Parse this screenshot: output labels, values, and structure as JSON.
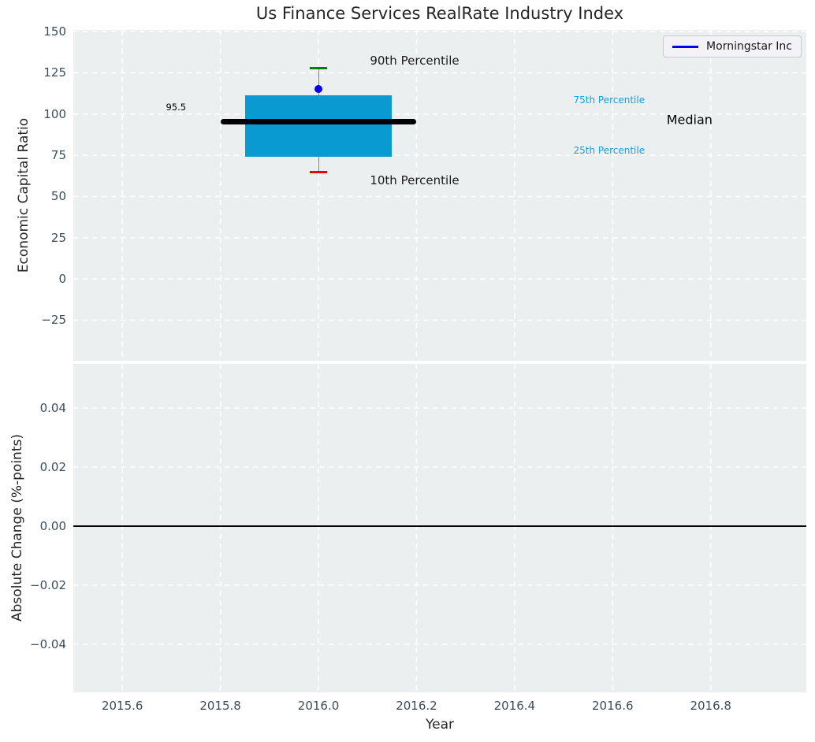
{
  "style": {
    "axes_background": "#ebeff0",
    "grid_color": "#ffffff",
    "tick_label_color": "#3d4c5a",
    "text_color": "#262626"
  },
  "chart_data": [
    {
      "type": "boxplot",
      "title": "Us Finance Services RealRate Industry Index",
      "ylabel": "Economic Capital Ratio",
      "xlim": [
        2015.5,
        2016.995
      ],
      "ylim": [
        -49.6,
        151
      ],
      "yticks": [
        150,
        125,
        100,
        75,
        50,
        25,
        0,
        -25
      ],
      "yticklabels": [
        "150",
        "125",
        "100",
        "75",
        "50",
        "25",
        "0",
        "−25"
      ],
      "xticks": [
        2015.6,
        2015.8,
        2016.0,
        2016.2,
        2016.4,
        2016.6,
        2016.8
      ],
      "grid": "white-dashed",
      "legend": {
        "position": "upper right",
        "entries": [
          {
            "label": "Morningstar Inc",
            "color": "#0000ee"
          }
        ]
      },
      "box": {
        "x_center": 2016.0,
        "box_x": [
          2015.85,
          2016.15
        ],
        "median_x": [
          2015.8,
          2016.2
        ],
        "cap_x": [
          2015.983,
          2016.017
        ],
        "p10": 65,
        "p25": 74,
        "median": 95.5,
        "p75": 111.5,
        "p90": 128,
        "box_color": "#0a9ad2",
        "median_color": "#000000",
        "cap_top_color": "#008000",
        "cap_bottom_color": "#ee0000",
        "whisker_color": "#808080"
      },
      "company_point": {
        "label": "Morningstar Inc",
        "x": 2016.0,
        "y": 115,
        "color": "#0000ee"
      },
      "annotations": [
        {
          "name": "median-value-label",
          "text": "95.5",
          "x": 2015.73,
          "y": 104,
          "color": "#000000",
          "size": 11.5,
          "align": "right"
        },
        {
          "name": "annotation-90th-percentile",
          "text": "90th Percentile",
          "x": 2016.105,
          "y": 132.5,
          "color": "#1a1a1a",
          "size": 15,
          "align": "left"
        },
        {
          "name": "annotation-10th-percentile",
          "text": "10th Percentile",
          "x": 2016.105,
          "y": 60,
          "color": "#1a1a1a",
          "size": 15,
          "align": "left"
        },
        {
          "name": "annotation-75th-percentile",
          "text": "75th Percentile",
          "x": 2016.52,
          "y": 108.5,
          "color": "#1a9fd4",
          "size": 12,
          "align": "left"
        },
        {
          "name": "annotation-median",
          "text": "Median",
          "x": 2016.71,
          "y": 96.5,
          "color": "#000000",
          "size": 16,
          "align": "left"
        },
        {
          "name": "annotation-25th-percentile",
          "text": "25th Percentile",
          "x": 2016.52,
          "y": 78,
          "color": "#1a9fd4",
          "size": 12,
          "align": "left"
        }
      ]
    },
    {
      "type": "line",
      "xlabel": "Year",
      "ylabel": "Absolute Change (%-points)",
      "xlim": [
        2015.5,
        2016.995
      ],
      "ylim": [
        -0.0563,
        0.0549
      ],
      "yticks": [
        0.04,
        0.02,
        0.0,
        -0.02,
        -0.04
      ],
      "yticklabels": [
        "0.04",
        "0.02",
        "0.00",
        "−0.02",
        "−0.04"
      ],
      "xticks": [
        2015.6,
        2015.8,
        2016.0,
        2016.2,
        2016.4,
        2016.6,
        2016.8
      ],
      "xticklabels": [
        "2015.6",
        "2015.8",
        "2016.0",
        "2016.2",
        "2016.4",
        "2016.6",
        "2016.8"
      ],
      "grid": "white-dashed",
      "zero_line": 0.0,
      "series": []
    }
  ]
}
